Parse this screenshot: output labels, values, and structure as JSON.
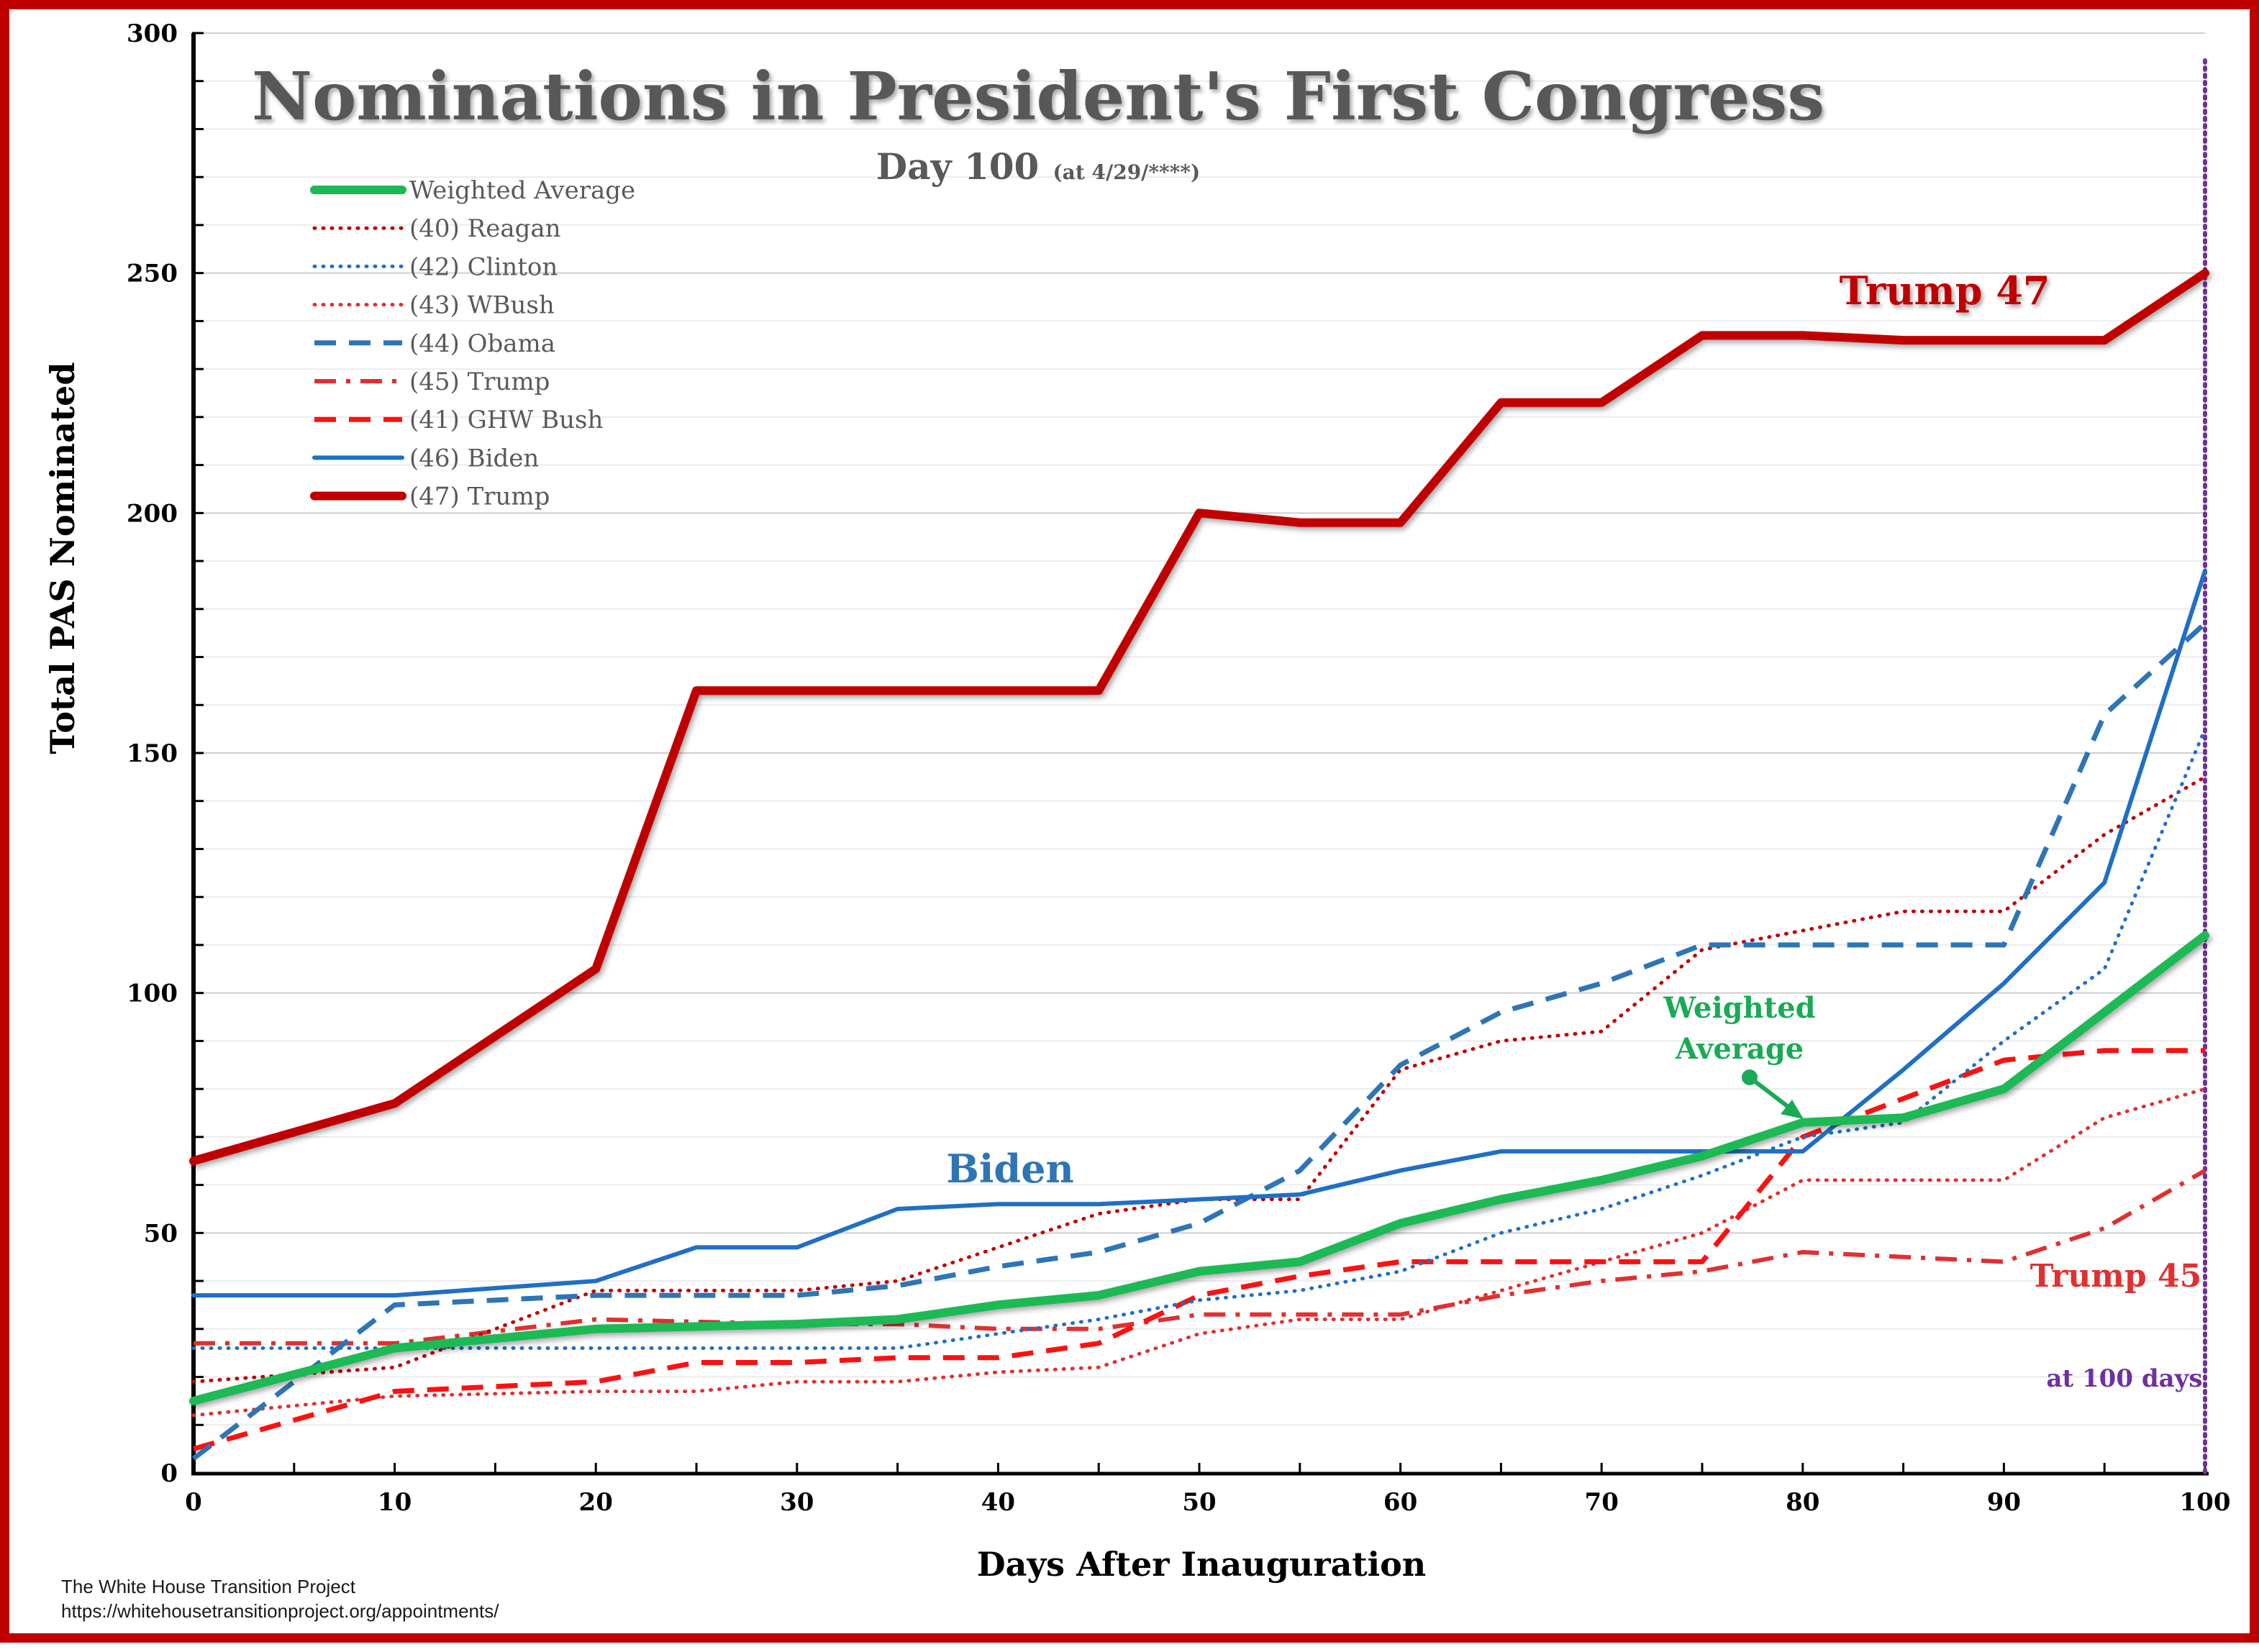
{
  "chart_data": {
    "type": "line",
    "title": "Nominations in President's First Congress",
    "subtitle_main": "Day 100",
    "subtitle_note": "(at 4/29/****)",
    "xlabel": "Days After Inauguration",
    "ylabel": "Total PAS Nominated",
    "xlim": [
      0,
      100
    ],
    "ylim": [
      0,
      300
    ],
    "x_ticks": [
      0,
      10,
      20,
      30,
      40,
      50,
      60,
      70,
      80,
      90,
      100
    ],
    "y_ticks": [
      0,
      50,
      100,
      150,
      200,
      250,
      300
    ],
    "grid": "horizontal",
    "legend_position": "top-left",
    "series": [
      {
        "name": "Weighted Average",
        "color": "#1db954",
        "style": "solid-thick",
        "points": [
          [
            0,
            15
          ],
          [
            10,
            26
          ],
          [
            20,
            30
          ],
          [
            30,
            31
          ],
          [
            35,
            32
          ],
          [
            40,
            35
          ],
          [
            45,
            37
          ],
          [
            50,
            42
          ],
          [
            55,
            44
          ],
          [
            60,
            52
          ],
          [
            65,
            57
          ],
          [
            70,
            61
          ],
          [
            75,
            66
          ],
          [
            80,
            73
          ],
          [
            85,
            74
          ],
          [
            90,
            80
          ],
          [
            95,
            96
          ],
          [
            100,
            112
          ]
        ]
      },
      {
        "name": "(40) Reagan",
        "color": "#c00000",
        "style": "dotted",
        "points": [
          [
            0,
            19
          ],
          [
            10,
            22
          ],
          [
            20,
            38
          ],
          [
            30,
            38
          ],
          [
            35,
            40
          ],
          [
            40,
            47
          ],
          [
            45,
            54
          ],
          [
            50,
            57
          ],
          [
            55,
            57
          ],
          [
            60,
            84
          ],
          [
            65,
            90
          ],
          [
            70,
            92
          ],
          [
            75,
            109
          ],
          [
            80,
            113
          ],
          [
            85,
            117
          ],
          [
            90,
            117
          ],
          [
            95,
            133
          ],
          [
            100,
            145
          ]
        ]
      },
      {
        "name": "(42) Clinton",
        "color": "#1f6fc5",
        "style": "dotted",
        "points": [
          [
            0,
            26
          ],
          [
            10,
            26
          ],
          [
            20,
            26
          ],
          [
            30,
            26
          ],
          [
            35,
            26
          ],
          [
            40,
            29
          ],
          [
            45,
            32
          ],
          [
            50,
            36
          ],
          [
            55,
            38
          ],
          [
            60,
            42
          ],
          [
            65,
            50
          ],
          [
            70,
            55
          ],
          [
            75,
            62
          ],
          [
            80,
            70
          ],
          [
            85,
            73
          ],
          [
            90,
            90
          ],
          [
            95,
            105
          ],
          [
            100,
            155
          ]
        ]
      },
      {
        "name": "(43) WBush",
        "color": "#e03030",
        "style": "dotted",
        "points": [
          [
            0,
            12
          ],
          [
            10,
            16
          ],
          [
            20,
            17
          ],
          [
            25,
            17
          ],
          [
            30,
            19
          ],
          [
            35,
            19
          ],
          [
            40,
            21
          ],
          [
            45,
            22
          ],
          [
            50,
            29
          ],
          [
            55,
            32
          ],
          [
            60,
            32
          ],
          [
            65,
            38
          ],
          [
            70,
            44
          ],
          [
            75,
            50
          ],
          [
            80,
            61
          ],
          [
            85,
            61
          ],
          [
            90,
            61
          ],
          [
            95,
            74
          ],
          [
            100,
            80
          ]
        ]
      },
      {
        "name": "(44) Obama",
        "color": "#2e75b6",
        "style": "dashed",
        "points": [
          [
            0,
            3
          ],
          [
            10,
            35
          ],
          [
            20,
            37
          ],
          [
            30,
            37
          ],
          [
            35,
            39
          ],
          [
            40,
            43
          ],
          [
            45,
            46
          ],
          [
            50,
            52
          ],
          [
            55,
            63
          ],
          [
            60,
            85
          ],
          [
            65,
            96
          ],
          [
            70,
            102
          ],
          [
            75,
            110
          ],
          [
            80,
            110
          ],
          [
            85,
            110
          ],
          [
            90,
            110
          ],
          [
            95,
            158
          ],
          [
            100,
            177
          ]
        ]
      },
      {
        "name": "(45) Trump",
        "color": "#e03030",
        "style": "dashdot",
        "points": [
          [
            0,
            27
          ],
          [
            10,
            27
          ],
          [
            20,
            32
          ],
          [
            30,
            31
          ],
          [
            35,
            31
          ],
          [
            40,
            30
          ],
          [
            45,
            30
          ],
          [
            50,
            33
          ],
          [
            55,
            33
          ],
          [
            60,
            33
          ],
          [
            65,
            37
          ],
          [
            70,
            40
          ],
          [
            75,
            42
          ],
          [
            80,
            46
          ],
          [
            85,
            45
          ],
          [
            90,
            44
          ],
          [
            95,
            51
          ],
          [
            100,
            63
          ]
        ]
      },
      {
        "name": "(41) GHW Bush",
        "color": "#ff1010",
        "style": "dashed",
        "points": [
          [
            0,
            5
          ],
          [
            10,
            17
          ],
          [
            20,
            19
          ],
          [
            25,
            23
          ],
          [
            30,
            23
          ],
          [
            35,
            24
          ],
          [
            40,
            24
          ],
          [
            45,
            27
          ],
          [
            50,
            37
          ],
          [
            55,
            41
          ],
          [
            60,
            44
          ],
          [
            65,
            44
          ],
          [
            70,
            44
          ],
          [
            75,
            44
          ],
          [
            80,
            70
          ],
          [
            85,
            78
          ],
          [
            90,
            86
          ],
          [
            95,
            88
          ],
          [
            100,
            88
          ]
        ]
      },
      {
        "name": "(46) Biden",
        "color": "#1f6fc5",
        "style": "solid",
        "points": [
          [
            0,
            37
          ],
          [
            10,
            37
          ],
          [
            20,
            40
          ],
          [
            25,
            47
          ],
          [
            30,
            47
          ],
          [
            35,
            55
          ],
          [
            40,
            56
          ],
          [
            45,
            56
          ],
          [
            50,
            57
          ],
          [
            55,
            58
          ],
          [
            60,
            63
          ],
          [
            65,
            67
          ],
          [
            70,
            67
          ],
          [
            75,
            67
          ],
          [
            80,
            67
          ],
          [
            85,
            84
          ],
          [
            90,
            102
          ],
          [
            95,
            123
          ],
          [
            100,
            188
          ]
        ]
      },
      {
        "name": "(47) Trump",
        "color": "#c00000",
        "style": "solid-thick",
        "points": [
          [
            0,
            65
          ],
          [
            10,
            77
          ],
          [
            20,
            105
          ],
          [
            25,
            163
          ],
          [
            30,
            163
          ],
          [
            35,
            163
          ],
          [
            40,
            163
          ],
          [
            45,
            163
          ],
          [
            50,
            200
          ],
          [
            55,
            198
          ],
          [
            60,
            198
          ],
          [
            65,
            223
          ],
          [
            70,
            223
          ],
          [
            75,
            237
          ],
          [
            80,
            237
          ],
          [
            85,
            236
          ],
          [
            90,
            236
          ],
          [
            95,
            236
          ],
          [
            100,
            250
          ]
        ]
      }
    ],
    "annotations": {
      "trump47": "Trump 47",
      "biden": "Biden",
      "weighted_line1": "Weighted",
      "weighted_line2": "Average",
      "trump45": "Trump 45",
      "at100": "at 100 days"
    },
    "marker_line": {
      "x": 100,
      "color": "#7030a0"
    }
  },
  "source": {
    "line1": "The White House Transition Project",
    "line2": "https://whitehousetransitionproject.org/appointments/"
  },
  "colors": {
    "frame": "#c00000",
    "title": "#595959",
    "weighted_annotation": "#1aaa55",
    "biden_annotation": "#2e75b6",
    "trump47_annotation": "#c00000",
    "trump45_annotation": "#e03030",
    "marker": "#7030a0"
  }
}
